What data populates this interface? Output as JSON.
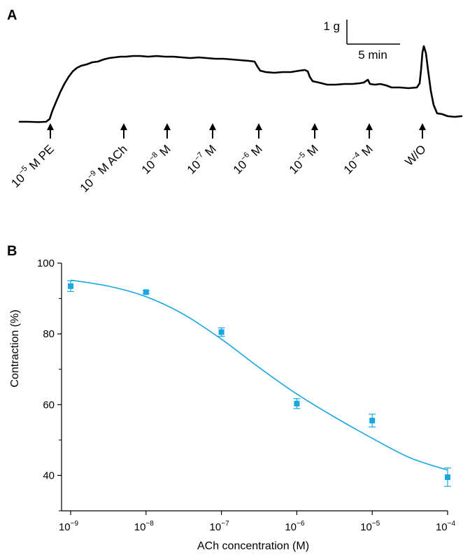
{
  "panel_a": {
    "label": "A",
    "scale_bar": {
      "vertical_label": "1 g",
      "horizontal_label": "5 min"
    },
    "events": [
      {
        "base": "10",
        "exp": "−5",
        "suffix": " M PE"
      },
      {
        "base": "10",
        "exp": "−9",
        "suffix": " M ACh"
      },
      {
        "base": "10",
        "exp": "−8",
        "suffix": " M"
      },
      {
        "base": "10",
        "exp": "−7",
        "suffix": " M"
      },
      {
        "base": "10",
        "exp": "−6",
        "suffix": " M"
      },
      {
        "base": "10",
        "exp": "−5",
        "suffix": " M"
      },
      {
        "base": "10",
        "exp": "−4",
        "suffix": " M"
      },
      {
        "base": "",
        "exp": "",
        "suffix": "W/O"
      }
    ]
  },
  "panel_b": {
    "label": "B"
  },
  "chart_data": {
    "type": "scatter",
    "title": "",
    "xlabel": "ACh concentration (M)",
    "ylabel": "Contraction (%)",
    "x_scale": "log",
    "x_ticks": [
      1e-09,
      1e-08,
      1e-07,
      1e-06,
      1e-05,
      0.0001
    ],
    "x_tick_labels": [
      {
        "base": "10",
        "exp": "−9"
      },
      {
        "base": "10",
        "exp": "−8"
      },
      {
        "base": "10",
        "exp": "−7"
      },
      {
        "base": "10",
        "exp": "−6"
      },
      {
        "base": "10",
        "exp": "−5"
      },
      {
        "base": "10",
        "exp": "−4"
      }
    ],
    "ylim": [
      30,
      100
    ],
    "y_ticks": [
      40,
      60,
      80,
      100
    ],
    "y_tick_labels": [
      "40",
      "60",
      "80",
      "100"
    ],
    "grid": false,
    "series_color": "#1aa6e0",
    "points": [
      {
        "x": 1e-09,
        "y": 93.5,
        "err": 1.5
      },
      {
        "x": 1e-08,
        "y": 91.8,
        "err": 0.4
      },
      {
        "x": 1e-07,
        "y": 80.5,
        "err": 1.2
      },
      {
        "x": 1e-06,
        "y": 60.3,
        "err": 1.4
      },
      {
        "x": 1e-05,
        "y": 55.5,
        "err": 1.8
      },
      {
        "x": 0.0001,
        "y": 39.5,
        "err": 2.6
      }
    ],
    "fit_curve": {
      "x": [
        1e-09,
        3.16e-09,
        1e-08,
        3.16e-08,
        1e-07,
        3.16e-07,
        1e-06,
        3.16e-06,
        1e-05,
        3.16e-05,
        0.0001
      ],
      "y": [
        95.2,
        93.5,
        90.5,
        85.5,
        78.5,
        70.5,
        63.0,
        56.5,
        50.5,
        45.0,
        41.5
      ]
    }
  }
}
